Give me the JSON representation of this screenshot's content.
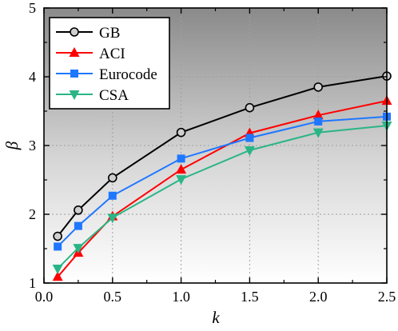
{
  "chart_data": {
    "type": "line",
    "xlabel": "k",
    "ylabel": "β",
    "xlim": [
      0.0,
      2.5
    ],
    "ylim": [
      1,
      5
    ],
    "xticks": [
      "0.0",
      "0.5",
      "1.0",
      "1.5",
      "2.0",
      "2.5"
    ],
    "yticks": [
      "1",
      "2",
      "3",
      "4",
      "5"
    ],
    "grid": true,
    "legend_position": "top-left",
    "background": "gradient dark-gray (top) to white (bottom)",
    "x": [
      0.1,
      0.25,
      0.5,
      1.0,
      1.5,
      2.0,
      2.5
    ],
    "series": [
      {
        "name": "GB",
        "color": "#000000",
        "marker": "circle",
        "values": [
          1.68,
          2.06,
          2.53,
          3.19,
          3.55,
          3.85,
          4.01
        ]
      },
      {
        "name": "ACI",
        "color": "#ff0000",
        "marker": "triangle-up",
        "values": [
          1.09,
          1.44,
          1.97,
          2.65,
          3.18,
          3.44,
          3.65
        ]
      },
      {
        "name": "Eurocode",
        "color": "#1f77ff",
        "marker": "square",
        "values": [
          1.53,
          1.83,
          2.27,
          2.81,
          3.11,
          3.35,
          3.42
        ]
      },
      {
        "name": "CSA",
        "color": "#2ab586",
        "marker": "triangle-down",
        "values": [
          1.21,
          1.51,
          1.95,
          2.51,
          2.93,
          3.19,
          3.29
        ]
      }
    ]
  }
}
